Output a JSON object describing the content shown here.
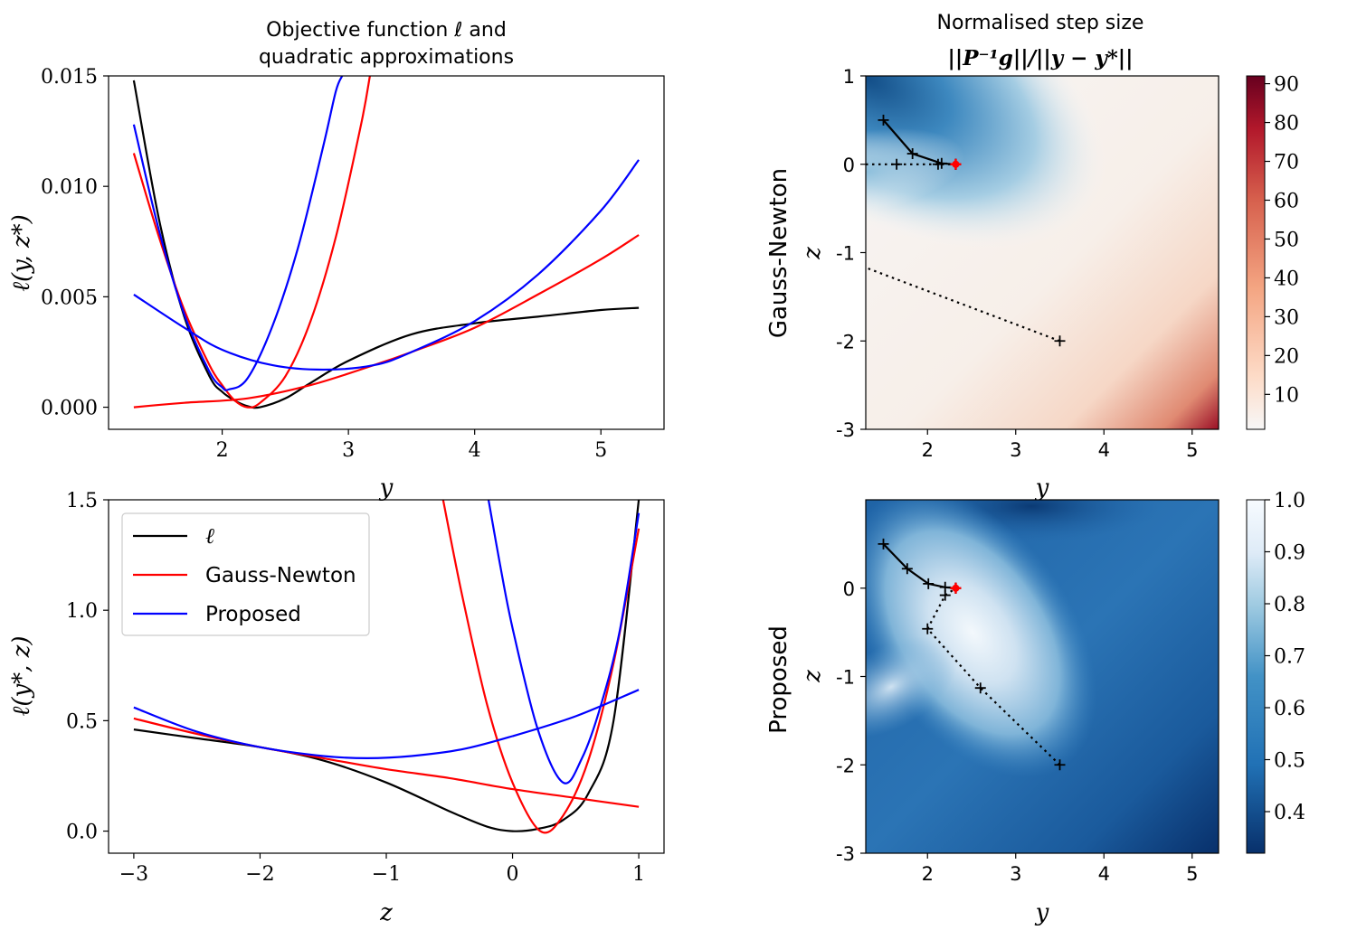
{
  "chart_data": [
    {
      "type": "line",
      "title_line1": "Objective function ℓ and",
      "title_line2": "quadratic approximations",
      "xlabel": "y",
      "ylabel": "ℓ(y, z*)",
      "xlim": [
        1.1,
        5.5
      ],
      "ylim": [
        -0.001,
        0.015
      ],
      "xticks": [
        2,
        3,
        4,
        5
      ],
      "xtick_labels": [
        "2",
        "3",
        "4",
        "5"
      ],
      "yticks": [
        0.0,
        0.005,
        0.01,
        0.015
      ],
      "ytick_labels": [
        "0.000",
        "0.005",
        "0.010",
        "0.015"
      ],
      "series": [
        {
          "color": "#000000",
          "x": [
            1.3,
            1.5,
            1.7,
            1.9,
            2.0,
            2.1,
            2.2,
            2.3,
            2.5,
            2.7,
            3.0,
            3.5,
            4.0,
            4.5,
            5.0,
            5.3
          ],
          "y": [
            0.0148,
            0.0085,
            0.0041,
            0.0014,
            0.0007,
            0.0003,
            5e-05,
            0.0,
            0.0004,
            0.0011,
            0.0021,
            0.0033,
            0.0038,
            0.0041,
            0.0044,
            0.0045
          ]
        },
        {
          "color": "#ff0000",
          "x": [
            1.3,
            1.5,
            1.7,
            1.9,
            2.0,
            2.1,
            2.2,
            2.3,
            2.5,
            2.7,
            2.9,
            3.1,
            3.17
          ],
          "y": [
            0.0115,
            0.0077,
            0.0044,
            0.0019,
            0.001,
            0.0003,
            0.0,
            0.0002,
            0.0014,
            0.0039,
            0.0077,
            0.0128,
            0.015
          ]
        },
        {
          "color": "#ff0000",
          "x": [
            1.3,
            1.7,
            2.2,
            2.7,
            3.2,
            3.5,
            4.0,
            4.5,
            5.0,
            5.3
          ],
          "y": [
            0.0,
            0.0002,
            0.0004,
            0.001,
            0.0019,
            0.0025,
            0.0036,
            0.0051,
            0.0067,
            0.0078
          ]
        },
        {
          "color": "#0000ff",
          "x": [
            1.3,
            1.5,
            1.7,
            1.9,
            2.0,
            2.05,
            2.2,
            2.4,
            2.6,
            2.8,
            2.9,
            2.95
          ],
          "y": [
            0.0128,
            0.008,
            0.0042,
            0.0016,
            0.0009,
            0.0008,
            0.0013,
            0.0037,
            0.0072,
            0.0118,
            0.0143,
            0.015
          ]
        },
        {
          "color": "#0000ff",
          "x": [
            1.3,
            1.7,
            2.0,
            2.4,
            2.8,
            3.2,
            3.5,
            4.0,
            4.5,
            5.0,
            5.3
          ],
          "y": [
            0.0051,
            0.0036,
            0.0026,
            0.0019,
            0.0017,
            0.0019,
            0.0025,
            0.0039,
            0.006,
            0.0089,
            0.0112
          ]
        }
      ]
    },
    {
      "type": "line",
      "xlabel": "z",
      "ylabel": "ℓ(y*, z)",
      "xlim": [
        -3.2,
        1.2
      ],
      "ylim": [
        -0.1,
        1.5
      ],
      "xticks": [
        -3,
        -2,
        -1,
        0,
        1
      ],
      "xtick_labels": [
        "−3",
        "−2",
        "−1",
        "0",
        "1"
      ],
      "yticks": [
        0.0,
        0.5,
        1.0,
        1.5
      ],
      "ytick_labels": [
        "0.0",
        "0.5",
        "1.0",
        "1.5"
      ],
      "legend": {
        "placement": "upper-left",
        "entries": [
          {
            "label": "ℓ",
            "color": "#000000"
          },
          {
            "label": "Gauss-Newton",
            "color": "#ff0000"
          },
          {
            "label": "Proposed",
            "color": "#0000ff"
          }
        ]
      },
      "series": [
        {
          "color": "#000000",
          "x": [
            -3.0,
            -2.5,
            -2.0,
            -1.5,
            -1.0,
            -0.5,
            -0.2,
            0.0,
            0.2,
            0.4,
            0.6,
            0.8,
            1.0
          ],
          "y": [
            0.46,
            0.42,
            0.38,
            0.32,
            0.22,
            0.09,
            0.02,
            0.0,
            0.01,
            0.05,
            0.17,
            0.5,
            1.5
          ]
        },
        {
          "color": "#ff0000",
          "x": [
            -3.0,
            -2.5,
            -2.0,
            -1.5,
            -1.0,
            -0.5,
            0.0,
            0.5,
            1.0
          ],
          "y": [
            0.51,
            0.44,
            0.38,
            0.33,
            0.28,
            0.24,
            0.19,
            0.15,
            0.11
          ]
        },
        {
          "color": "#ff0000",
          "x": [
            -0.55,
            -0.4,
            -0.2,
            0.0,
            0.22,
            0.4,
            0.6,
            0.8,
            1.0
          ],
          "y": [
            1.5,
            1.07,
            0.57,
            0.22,
            0.0,
            0.07,
            0.32,
            0.76,
            1.37
          ]
        },
        {
          "color": "#0000ff",
          "x": [
            -3.0,
            -2.5,
            -2.0,
            -1.5,
            -1.15,
            -0.8,
            -0.4,
            0.0,
            0.5,
            1.0
          ],
          "y": [
            0.56,
            0.45,
            0.38,
            0.34,
            0.33,
            0.34,
            0.37,
            0.43,
            0.52,
            0.64
          ]
        },
        {
          "color": "#0000ff",
          "x": [
            -0.19,
            -0.1,
            0.0,
            0.2,
            0.4,
            0.55,
            0.7,
            0.85,
            1.0
          ],
          "y": [
            1.5,
            1.21,
            0.92,
            0.46,
            0.22,
            0.33,
            0.57,
            0.91,
            1.44
          ]
        }
      ]
    },
    {
      "type": "heatmap",
      "title_line1": "Normalised step size",
      "title_line2": "||P⁻¹g||/||y − y*||",
      "row_label": "Gauss-Newton",
      "xlabel": "y",
      "ylabel": "z",
      "xlim": [
        1.3,
        5.3
      ],
      "ylim": [
        -3,
        1
      ],
      "xticks": [
        2,
        3,
        4,
        5
      ],
      "xtick_labels": [
        "2",
        "3",
        "4",
        "5"
      ],
      "yticks": [
        1,
        0,
        -1,
        -2,
        -3
      ],
      "ytick_labels": [
        "1",
        "0",
        "-1",
        "-2",
        "-3"
      ],
      "colormap": "RdBu_r",
      "colorbar_ticks": [
        10,
        20,
        30,
        40,
        50,
        60,
        70,
        80,
        90
      ],
      "colorbar_tick_labels": [
        "10",
        "20",
        "30",
        "40",
        "50",
        "60",
        "70",
        "80",
        "90"
      ],
      "colorbar_range": [
        1,
        92
      ],
      "optimum": [
        2.32,
        0.0
      ],
      "trajectories": [
        {
          "style": "solid",
          "points": [
            [
              1.5,
              0.5
            ],
            [
              1.83,
              0.12
            ],
            [
              2.16,
              0.01
            ],
            [
              2.32,
              0.0
            ]
          ]
        },
        {
          "style": "dotted",
          "points": [
            [
              1.3,
              0.0
            ],
            [
              1.65,
              0.0
            ],
            [
              2.12,
              0.0
            ],
            [
              2.32,
              0.0
            ]
          ]
        },
        {
          "style": "dotted",
          "points": [
            [
              3.5,
              -2.0
            ],
            [
              1.3,
              -1.17
            ]
          ]
        }
      ]
    },
    {
      "type": "heatmap",
      "row_label": "Proposed",
      "xlabel": "y",
      "ylabel": "z",
      "xlim": [
        1.3,
        5.3
      ],
      "ylim": [
        -3,
        1
      ],
      "xticks": [
        2,
        3,
        4,
        5
      ],
      "xtick_labels": [
        "2",
        "3",
        "4",
        "5"
      ],
      "yticks": [
        0,
        -1,
        -2,
        -3
      ],
      "ytick_labels": [
        "0",
        "-1",
        "-2",
        "-3"
      ],
      "colormap": "Blues_r",
      "colorbar_ticks": [
        0.4,
        0.5,
        0.6,
        0.7,
        0.8,
        0.9,
        1.0
      ],
      "colorbar_tick_labels": [
        "0.4",
        "0.5",
        "0.6",
        "0.7",
        "0.8",
        "0.9",
        "1.0"
      ],
      "colorbar_range": [
        0.32,
        1.0
      ],
      "optimum": [
        2.32,
        0.0
      ],
      "trajectories": [
        {
          "style": "solid",
          "points": [
            [
              1.5,
              0.5
            ],
            [
              1.77,
              0.22
            ],
            [
              2.01,
              0.05
            ],
            [
              2.2,
              0.01
            ],
            [
              2.32,
              0.0
            ]
          ]
        },
        {
          "style": "dotted",
          "points": [
            [
              3.5,
              -2.0
            ],
            [
              2.6,
              -1.13
            ],
            [
              2.0,
              -0.46
            ],
            [
              2.2,
              -0.08
            ],
            [
              2.32,
              0.0
            ]
          ]
        }
      ]
    }
  ]
}
